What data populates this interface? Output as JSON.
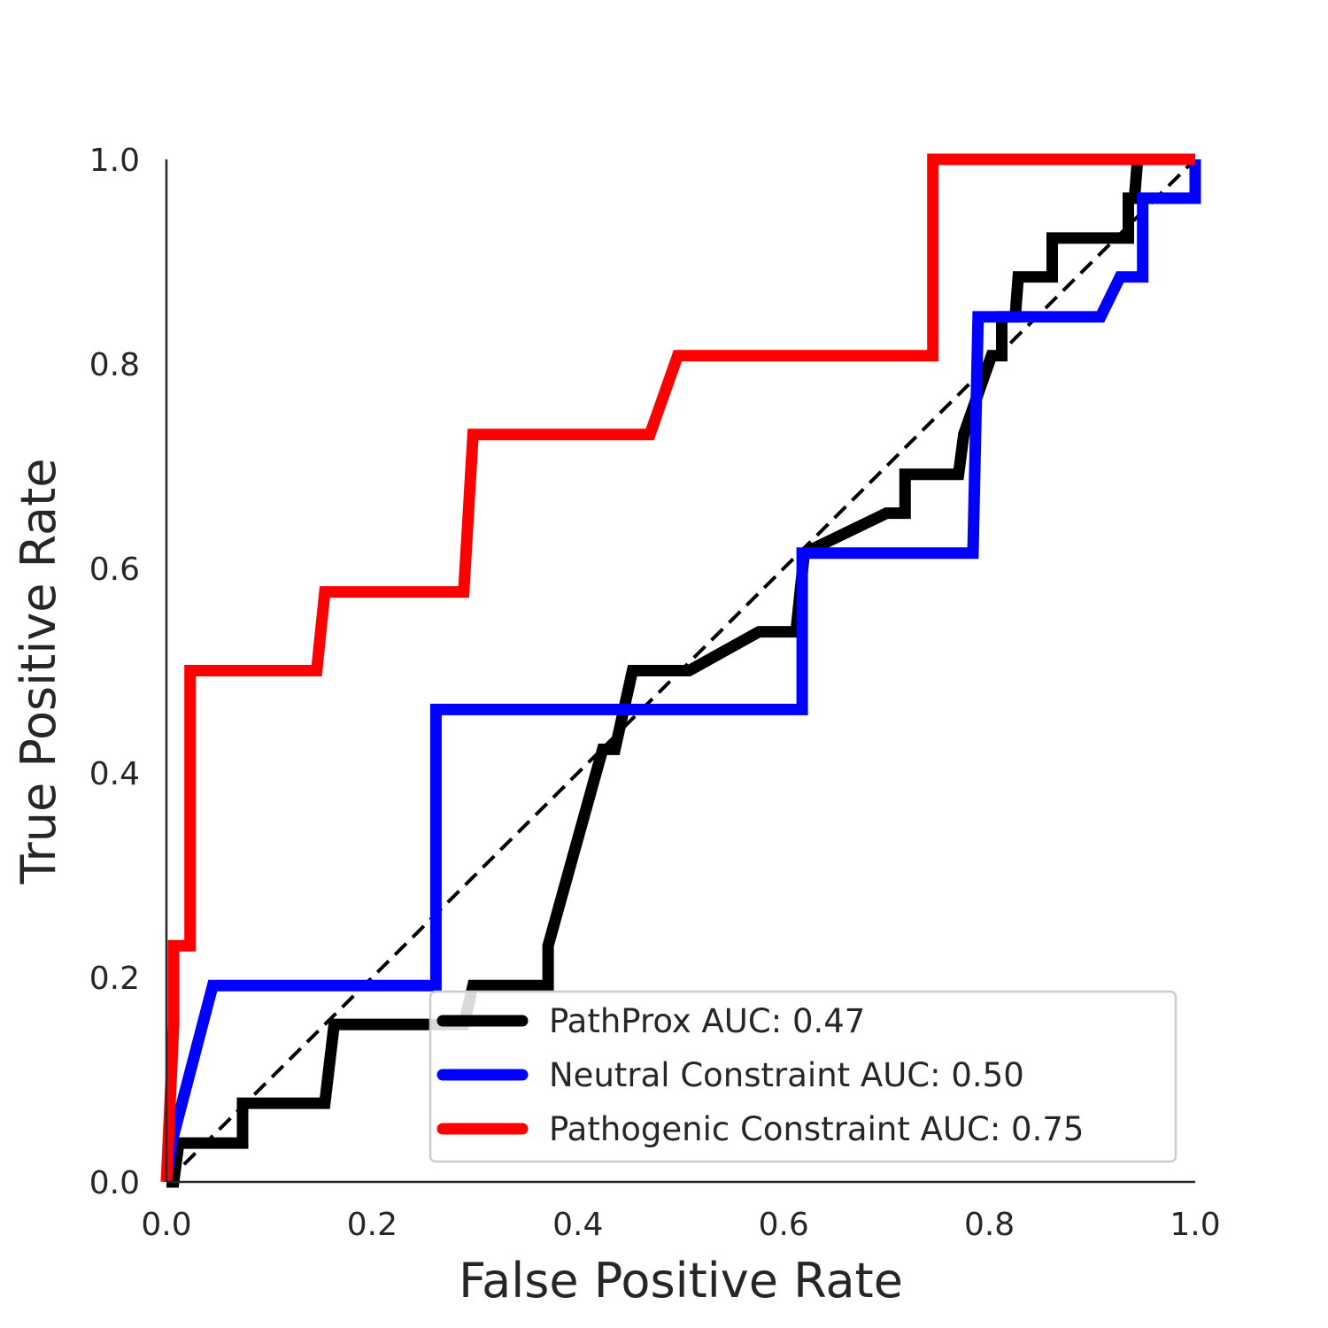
{
  "chart_data": {
    "type": "line",
    "title": "",
    "xlabel": "False Positive Rate",
    "ylabel": "True Positive Rate",
    "xlim": [
      0.0,
      1.0
    ],
    "ylim": [
      0.0,
      1.0
    ],
    "xticks": [
      "0.0",
      "0.2",
      "0.4",
      "0.6",
      "0.8",
      "1.0"
    ],
    "yticks": [
      "0.0",
      "0.2",
      "0.4",
      "0.6",
      "0.8",
      "1.0"
    ],
    "grid": false,
    "legend_position": "bottom-right",
    "diagonal": {
      "x": [
        0,
        1
      ],
      "y": [
        0,
        1
      ],
      "style": "dashed",
      "color": "#000000"
    },
    "series": [
      {
        "name": "PathProx AUC:  0.47",
        "color": "#000000",
        "x": [
          0.0,
          0.007,
          0.012,
          0.074,
          0.074,
          0.154,
          0.163,
          0.289,
          0.298,
          0.371,
          0.371,
          0.424,
          0.436,
          0.453,
          0.508,
          0.576,
          0.612,
          0.62,
          0.7,
          0.718,
          0.718,
          0.77,
          0.775,
          0.802,
          0.812,
          0.812,
          0.825,
          0.828,
          0.861,
          0.861,
          0.935,
          0.935,
          0.941,
          0.944,
          1.0
        ],
        "y": [
          0.0,
          0.0,
          0.038,
          0.038,
          0.077,
          0.077,
          0.154,
          0.154,
          0.192,
          0.192,
          0.231,
          0.423,
          0.423,
          0.5,
          0.5,
          0.538,
          0.538,
          0.615,
          0.654,
          0.654,
          0.692,
          0.692,
          0.731,
          0.808,
          0.808,
          0.846,
          0.846,
          0.885,
          0.885,
          0.923,
          0.923,
          0.962,
          0.962,
          1.0,
          1.0
        ]
      },
      {
        "name": "Neutral Constraint AUC:  0.50",
        "color": "#0000ff",
        "x": [
          0.0,
          0.005,
          0.045,
          0.262,
          0.262,
          0.618,
          0.618,
          0.784,
          0.789,
          0.908,
          0.927,
          0.949,
          0.949,
          1.0,
          1.0
        ],
        "y": [
          0.0,
          0.038,
          0.192,
          0.192,
          0.462,
          0.462,
          0.615,
          0.615,
          0.846,
          0.846,
          0.885,
          0.885,
          0.962,
          0.962,
          1.0
        ]
      },
      {
        "name": "Pathogenic Constraint AUC:  0.75",
        "color": "#ff0000",
        "x": [
          0.0,
          0.007,
          0.007,
          0.023,
          0.023,
          0.146,
          0.154,
          0.289,
          0.298,
          0.47,
          0.497,
          0.745,
          0.745,
          1.0
        ],
        "y": [
          0.0,
          0.154,
          0.231,
          0.231,
          0.5,
          0.5,
          0.577,
          0.577,
          0.731,
          0.731,
          0.808,
          0.808,
          1.0,
          1.0
        ]
      }
    ]
  }
}
